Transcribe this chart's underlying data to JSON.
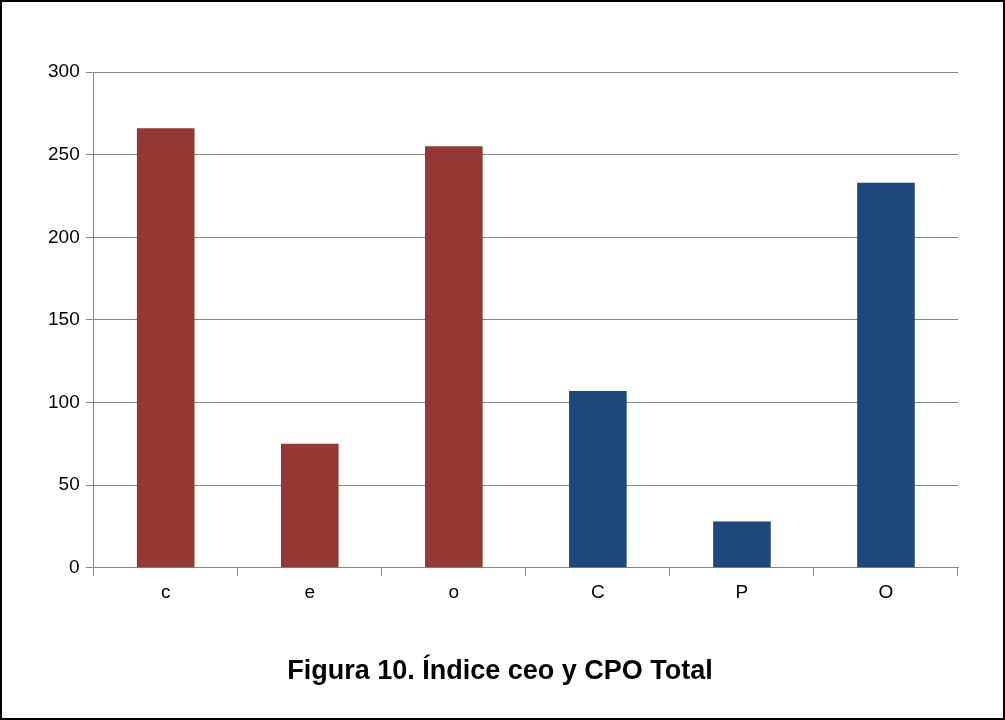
{
  "chart_data": {
    "type": "bar",
    "title": "Figura 10. Índice ceo y CPO Total",
    "categories": [
      "c",
      "e",
      "o",
      "C",
      "P",
      "O"
    ],
    "values": [
      266,
      75,
      255,
      107,
      28,
      233
    ],
    "colors": [
      "#953735",
      "#953735",
      "#953735",
      "#1f497d",
      "#1f497d",
      "#1f497d"
    ],
    "ylim": [
      0,
      300
    ],
    "yticks": [
      0,
      50,
      100,
      150,
      200,
      250,
      300
    ],
    "grid": "y",
    "legend": false
  }
}
